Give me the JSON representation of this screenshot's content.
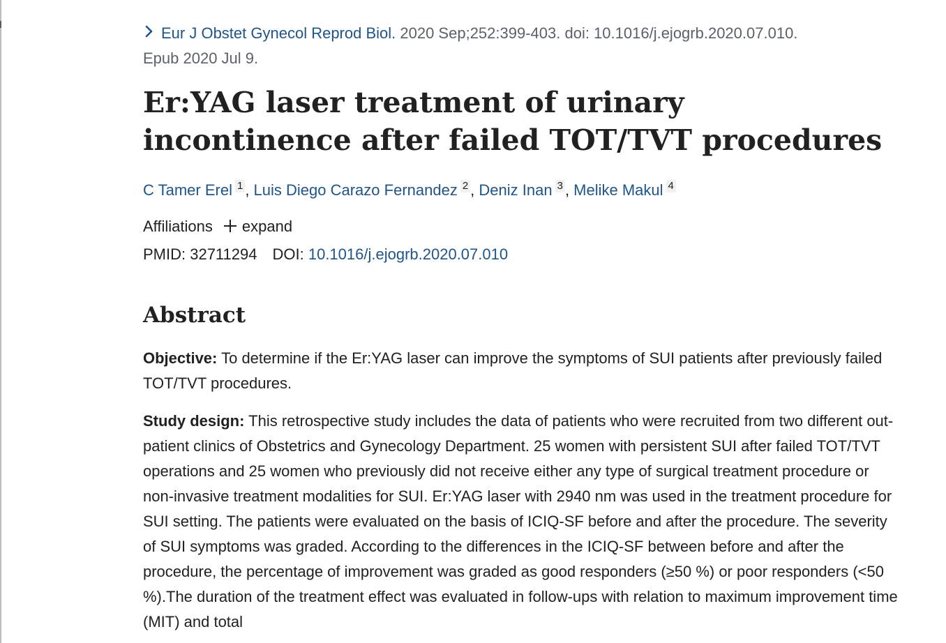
{
  "citation": {
    "journal": "Eur J Obstet Gynecol Reprod Biol.",
    "details": " 2020 Sep;252:399-403. doi: 10.1016/j.ejogrb.2020.07.010.",
    "epub": "Epub 2020 Jul 9."
  },
  "article": {
    "title": "Er:YAG laser treatment of urinary incontinence after failed TOT/TVT procedures",
    "authors": [
      {
        "name": "C Tamer Erel",
        "aff": "1"
      },
      {
        "name": "Luis Diego Carazo Fernandez",
        "aff": "2"
      },
      {
        "name": "Deniz Inan",
        "aff": "3"
      },
      {
        "name": "Melike Makul",
        "aff": "4"
      }
    ],
    "affiliations_label": "Affiliations",
    "expand_label": "expand",
    "pmid_label": "PMID: 32711294",
    "doi_label": "DOI:",
    "doi_value": "10.1016/j.ejogrb.2020.07.010"
  },
  "abstract": {
    "heading": "Abstract",
    "objective_label": "Objective:",
    "objective_text": " To determine if the Er:YAG laser can improve the symptoms of SUI patients after previously failed TOT/TVT procedures.",
    "design_label": "Study design:",
    "design_text": " This retrospective study includes the data of patients who were recruited from two different out-patient clinics of Obstetrics and Gynecology Department. 25 women with persistent SUI after failed TOT/TVT operations and 25 women who previously did not receive either any type of surgical treatment procedure or non-invasive treatment modalities for SUI. Er:YAG laser with 2940 nm was used in the treatment procedure for SUI setting. The patients were evaluated on the basis of ICIQ-SF before and after the procedure. The severity of SUI symptoms was graded. According to the differences in the ICIQ-SF between before and after the procedure, the percentage of improvement was graded as good responders (≥50 %) or poor responders (<50 %).The duration of the treatment effect was evaluated in follow-ups with relation to maximum improvement time (MIT) and total"
  },
  "colors": {
    "link": "#20558a",
    "muted": "#5b616b",
    "text": "#212121"
  },
  "icons": [
    "chevron-right-icon",
    "plus-icon"
  ]
}
